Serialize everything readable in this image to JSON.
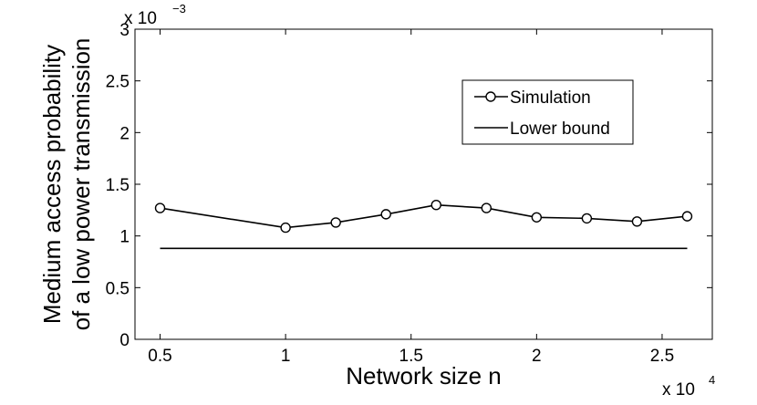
{
  "chart_data": {
    "type": "line",
    "title": "",
    "xlabel": "Network size n",
    "ylabel_lines": [
      "Medium access probability",
      "of a low power transmission"
    ],
    "x_exponent_label": {
      "base": "x 10",
      "power": "4"
    },
    "y_exponent_label": {
      "base": "x 10",
      "power": "−3"
    },
    "xlim": [
      4000,
      27000
    ],
    "ylim": [
      0,
      0.003
    ],
    "x_ticks": [
      5000,
      10000,
      15000,
      20000,
      25000
    ],
    "x_tick_labels": [
      "0.5",
      "1",
      "1.5",
      "2",
      "2.5"
    ],
    "y_ticks": [
      0,
      0.0005,
      0.001,
      0.0015,
      0.002,
      0.0025,
      0.003
    ],
    "y_tick_labels": [
      "0",
      "0.5",
      "1",
      "1.5",
      "2",
      "2.5",
      "3"
    ],
    "grid": false,
    "legend_position": "upper-right",
    "series": [
      {
        "name": "Simulation",
        "marker": "circle",
        "color": "#000000",
        "x": [
          5000,
          10000,
          12000,
          14000,
          16000,
          18000,
          20000,
          22000,
          24000,
          26000
        ],
        "y": [
          0.00127,
          0.00108,
          0.00113,
          0.00121,
          0.0013,
          0.00127,
          0.00118,
          0.00117,
          0.00114,
          0.00119
        ]
      },
      {
        "name": "Lower bound",
        "marker": "none",
        "color": "#000000",
        "x": [
          5000,
          26000
        ],
        "y": [
          0.00088,
          0.00088
        ]
      }
    ]
  }
}
